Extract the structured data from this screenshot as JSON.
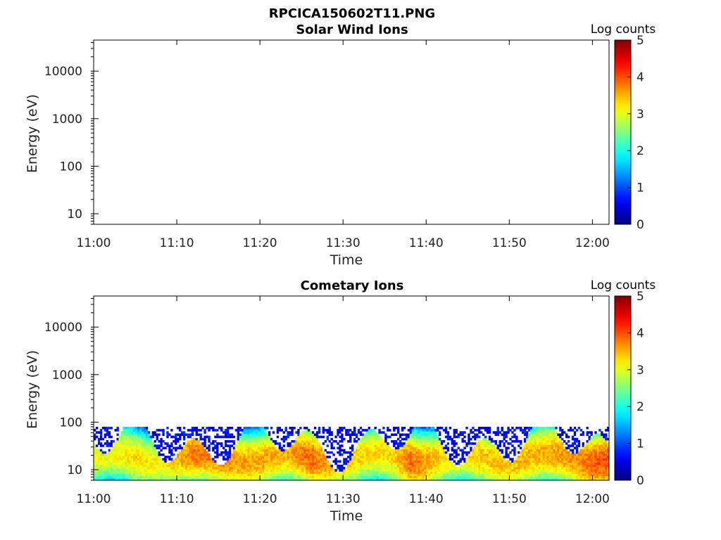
{
  "figure": {
    "title": "RPCICA150602T11.PNG"
  },
  "colorbar": {
    "label": "Log counts",
    "ticks": [
      "0",
      "1",
      "2",
      "3",
      "4",
      "5"
    ],
    "range": [
      0,
      5
    ],
    "colormap": "jet"
  },
  "chart_data": [
    {
      "type": "heatmap",
      "title": "Solar Wind Ions",
      "xlabel": "Time",
      "ylabel": "Energy (eV)",
      "x_tick_labels": [
        "11:00",
        "11:10",
        "11:20",
        "11:30",
        "11:40",
        "11:50",
        "12:00"
      ],
      "y_tick_labels": [
        "10",
        "100",
        "1000",
        "10000"
      ],
      "y_scale": "log",
      "x_range": [
        "11:00",
        "12:02"
      ],
      "y_range": [
        6,
        45000
      ],
      "grid": false,
      "data_present": false
    },
    {
      "type": "heatmap",
      "title": "Cometary Ions",
      "xlabel": "Time",
      "ylabel": "Energy (eV)",
      "x_tick_labels": [
        "11:00",
        "11:10",
        "11:20",
        "11:30",
        "11:40",
        "11:50",
        "12:00"
      ],
      "y_tick_labels": [
        "10",
        "100",
        "1000",
        "10000"
      ],
      "y_scale": "log",
      "x_range": [
        "11:00",
        "12:02"
      ],
      "y_range": [
        6,
        45000
      ],
      "grid": false,
      "data_present": true,
      "energy_range_eV": [
        6,
        80
      ],
      "peak_log_counts": [
        {
          "time": "11:02",
          "log_counts": 3.1
        },
        {
          "time": "11:05",
          "log_counts": 3.3
        },
        {
          "time": "11:08",
          "log_counts": 3.1
        },
        {
          "time": "11:12",
          "log_counts": 3.8
        },
        {
          "time": "11:15",
          "log_counts": 3.8
        },
        {
          "time": "11:17",
          "log_counts": 3.6
        },
        {
          "time": "11:23",
          "log_counts": 3.5
        },
        {
          "time": "11:26",
          "log_counts": 3.9
        },
        {
          "time": "11:29",
          "log_counts": 3.4
        },
        {
          "time": "11:33",
          "log_counts": 3.3
        },
        {
          "time": "11:36",
          "log_counts": 3.3
        },
        {
          "time": "11:38",
          "log_counts": 3.9
        },
        {
          "time": "11:42",
          "log_counts": 3.3
        },
        {
          "time": "11:46",
          "log_counts": 3.4
        },
        {
          "time": "11:53",
          "log_counts": 3.5
        },
        {
          "time": "11:58",
          "log_counts": 3.7
        },
        {
          "time": "12:01",
          "log_counts": 4.0
        }
      ]
    }
  ]
}
